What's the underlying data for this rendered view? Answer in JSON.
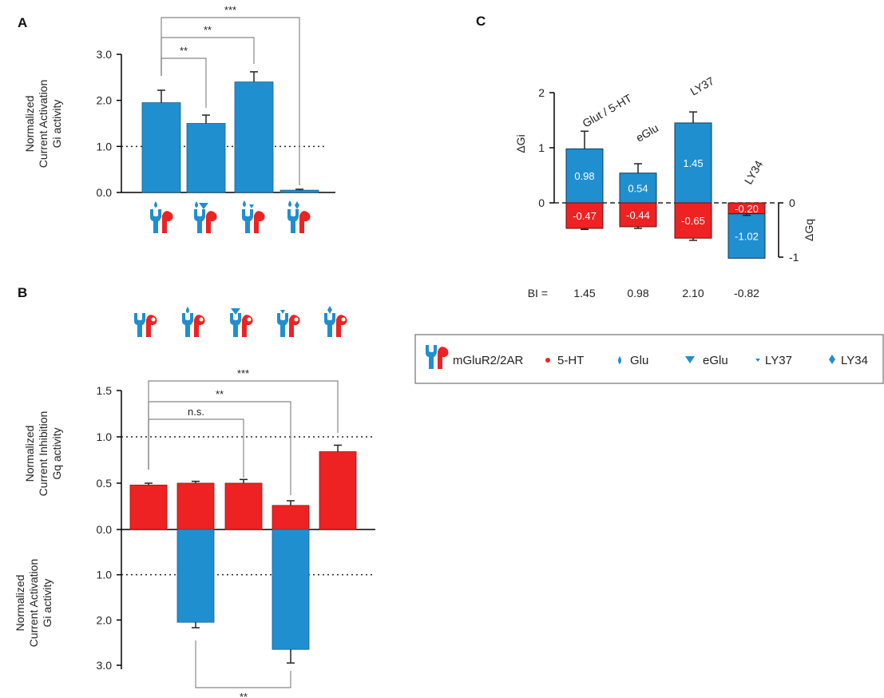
{
  "colors": {
    "gi": "#1f8fd0",
    "gq": "#ee2222",
    "axis": "#000000",
    "bracket": "#888888"
  },
  "panel_a": {
    "letter": "A",
    "ylabel": [
      "Normalized",
      "Current Activation",
      "Gi activity"
    ],
    "ref_label": "1.0",
    "significance": [
      "**",
      "**",
      "***"
    ]
  },
  "panel_b": {
    "letter": "B",
    "ylabel_top": [
      "Normalized",
      "Current Inhibition",
      "Gq activity"
    ],
    "ylabel_bottom": [
      "Normalized",
      "Current Activation",
      "Gi activity"
    ],
    "significance": [
      "n.s.",
      "**",
      "***",
      "**"
    ]
  },
  "panel_c": {
    "letter": "C",
    "ylabel_left": "ΔGi",
    "ylabel_right": "ΔGq",
    "bi_prefix": "BI =",
    "categories": [
      "Glut / 5-HT",
      "eGlu",
      "LY37",
      "LY34"
    ],
    "bi_values": [
      "1.45",
      "0.98",
      "2.10",
      "-0.82"
    ]
  },
  "legend": {
    "items": [
      {
        "icon": "receptor-icon",
        "label": "mGluR2/2AR"
      },
      {
        "icon": "red-dot-icon",
        "label": "5-HT"
      },
      {
        "icon": "glu-drop-icon",
        "label": "Glu"
      },
      {
        "icon": "eglu-triangle-icon",
        "label": "eGlu"
      },
      {
        "icon": "ly37-small-triangle-icon",
        "label": "LY37"
      },
      {
        "icon": "ly34-diamond-icon",
        "label": "LY34"
      }
    ]
  },
  "chart_data": [
    {
      "type": "bar",
      "panel": "A",
      "ylabel": "Normalized Current Activation Gi activity",
      "ylim": [
        0,
        3.0
      ],
      "yticks": [
        "0.0",
        "1.0",
        "2.0",
        "3.0"
      ],
      "reference_line": 1.0,
      "categories": [
        "Glu",
        "Glu + eGlu",
        "Glu + LY37",
        "Glu + LY34"
      ],
      "series": [
        {
          "color": "#1f8fd0",
          "values": [
            1.95,
            1.5,
            2.4,
            0.05
          ],
          "errors": [
            0.27,
            0.18,
            0.22,
            0.02
          ]
        }
      ],
      "annotations": [
        {
          "from": 0,
          "to": 1,
          "text": "**"
        },
        {
          "from": 0,
          "to": 2,
          "text": "**"
        },
        {
          "from": 0,
          "to": 3,
          "text": "***"
        }
      ]
    },
    {
      "type": "bar",
      "panel": "B",
      "ylabel_top": "Normalized Current Inhibition Gq activity",
      "ylabel_bottom": "Normalized Current Activation Gi activity",
      "yticks_top": [
        "0.0",
        "0.5",
        "1.0",
        "1.5"
      ],
      "yticks_bottom": [
        "1.0",
        "2.0",
        "3.0"
      ],
      "reference_line": 1.0,
      "categories": [
        "5-HT",
        "5-HT + Glu",
        "5-HT + eGlu",
        "5-HT + LY37",
        "5-HT + LY34"
      ],
      "series": [
        {
          "color": "#ee2222",
          "values": [
            0.48,
            0.5,
            0.5,
            0.26,
            0.84
          ],
          "errors": [
            0.02,
            0.02,
            0.04,
            0.05,
            0.07
          ]
        },
        {
          "color": "#1f8fd0",
          "values": [
            0,
            2.05,
            0,
            2.65,
            0
          ],
          "errors": [
            0,
            0.12,
            0,
            0.3,
            0
          ]
        }
      ],
      "annotations": [
        {
          "from": 0,
          "to": 2,
          "text": "n.s."
        },
        {
          "from": 0,
          "to": 3,
          "text": "**"
        },
        {
          "from": 0,
          "to": 4,
          "text": "***"
        },
        {
          "from": 1,
          "to": 3,
          "text": "**"
        }
      ]
    },
    {
      "type": "bar",
      "panel": "C",
      "ylabel_left": "ΔGi",
      "ylabel_right": "ΔGq",
      "yticks_left": [
        "0",
        "1",
        "2"
      ],
      "yticks_right": [
        "0",
        "-1"
      ],
      "categories": [
        "Glut / 5-HT",
        "eGlu",
        "LY37",
        "LY34"
      ],
      "series": [
        {
          "color": "#1f8fd0",
          "values": [
            0.98,
            0.54,
            1.45,
            -1.02
          ],
          "labels": [
            "0.98",
            "0.54",
            "1.45",
            "-1.02"
          ],
          "errors": [
            0.32,
            0.17,
            0.2,
            0
          ]
        },
        {
          "color": "#ee2222",
          "values": [
            -0.47,
            -0.44,
            -0.65,
            -0.2
          ],
          "labels": [
            "-0.47",
            "-0.44",
            "-0.65",
            "-0.20"
          ],
          "errors": [
            0.02,
            0.03,
            0.04,
            0.03
          ]
        }
      ],
      "bi": [
        "1.45",
        "0.98",
        "2.10",
        "-0.82"
      ]
    }
  ]
}
